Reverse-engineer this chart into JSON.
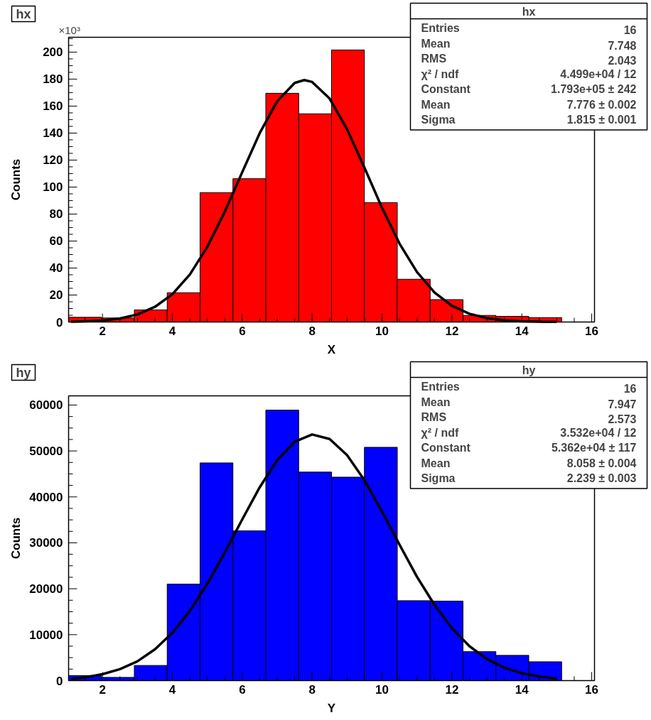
{
  "chart_data": [
    {
      "type": "histogram",
      "title": "hx",
      "xlabel": "X",
      "ylabel": "Counts",
      "color": "#ff0000",
      "bins": [
        1.03,
        1.9706,
        2.9113,
        3.8519,
        4.7925,
        5.7331,
        6.6738,
        7.6144,
        8.555,
        9.4956,
        10.4363,
        11.3769,
        12.3175,
        13.2581,
        14.1988,
        15.1394,
        16.08
      ],
      "values": [
        3.5,
        3,
        9,
        21.7,
        95.9,
        106.2,
        169.5,
        154.3,
        201.6,
        88.5,
        31.7,
        16.6,
        4.9,
        4.2,
        3.3,
        0
      ],
      "series": [
        {
          "type": "line",
          "color": "#000000",
          "x": [
            1.1,
            1.5,
            2,
            2.5,
            3,
            3.5,
            4,
            4.5,
            5,
            5.5,
            6,
            6.5,
            7,
            7.5,
            7.776,
            8,
            8.5,
            9,
            9.5,
            10,
            10.5,
            11,
            11.5,
            12,
            12.5,
            13,
            13.5,
            14,
            14.5,
            15
          ],
          "values": [
            0.2,
            0.5,
            1.1,
            2.6,
            5.6,
            11.2,
            20.6,
            35.2,
            55.7,
            81.7,
            111.1,
            140.0,
            163.6,
            177.2,
            179.3,
            177.9,
            165.6,
            142.8,
            114.2,
            84.6,
            58.1,
            37.0,
            21.9,
            12.0,
            6.1,
            2.9,
            1.2,
            0.5,
            0.2,
            0.1
          ]
        }
      ],
      "xlim": [
        1.03,
        16.08
      ],
      "ylim": [
        0,
        211
      ],
      "xticks": [
        2,
        4,
        6,
        8,
        10,
        12,
        14,
        16
      ],
      "yticks": [
        0,
        20,
        40,
        60,
        80,
        100,
        120,
        140,
        160,
        180,
        200
      ],
      "grid": false,
      "annotations": [
        "×10³",
        "hx",
        "Entries",
        "16",
        "Mean",
        "7.748",
        "RMS",
        "2.043",
        "χ² / ndf",
        "4.499e+04 / 12",
        "Constant",
        "1.793e+05 ± 242",
        "Mean",
        "7.776 ± 0.002",
        "Sigma",
        "1.815 ± 0.001"
      ]
    },
    {
      "type": "histogram",
      "title": "hy",
      "xlabel": "Y",
      "ylabel": "Counts",
      "color": "#0000ff",
      "bins": [
        1.03,
        1.9706,
        2.9113,
        3.8519,
        4.7925,
        5.7331,
        6.6738,
        7.6144,
        8.555,
        9.4956,
        10.4363,
        11.3769,
        12.3175,
        13.2581,
        14.1988,
        15.1394,
        16.08
      ],
      "values": [
        1100,
        700,
        3300,
        21000,
        47400,
        32600,
        58900,
        45400,
        44300,
        50800,
        17400,
        17300,
        6300,
        5500,
        4100,
        0
      ],
      "series": [
        {
          "type": "line",
          "color": "#000000",
          "x": [
            1.1,
            1.5,
            2,
            2.5,
            3,
            3.5,
            4,
            4.5,
            5,
            5.5,
            6,
            6.5,
            7,
            7.5,
            8,
            8.5,
            9,
            9.5,
            10,
            10.5,
            11,
            11.5,
            12,
            12.5,
            13,
            13.5,
            14,
            14.5,
            15
          ],
          "values": [
            400,
            700,
            1400,
            2500,
            4200,
            6800,
            10400,
            15200,
            21100,
            27900,
            35100,
            42100,
            48000,
            52000,
            53600,
            52600,
            49100,
            43600,
            36800,
            29600,
            22600,
            16500,
            11400,
            7500,
            4700,
            2800,
            1600,
            900,
            400
          ]
        }
      ],
      "xlim": [
        1.03,
        16.08
      ],
      "ylim": [
        0,
        62000
      ],
      "xticks": [
        2,
        4,
        6,
        8,
        10,
        12,
        14,
        16
      ],
      "yticks": [
        0,
        10000,
        20000,
        30000,
        40000,
        50000,
        60000
      ],
      "grid": false,
      "annotations": [
        "hy",
        "Entries",
        "16",
        "Mean",
        "7.947",
        "RMS",
        "2.573",
        "χ² / ndf",
        "3.532e+04 / 12",
        "Constant",
        "5.362e+04 ± 117",
        "Mean",
        "8.058 ± 0.004",
        "Sigma",
        "2.239 ± 0.003"
      ]
    }
  ]
}
